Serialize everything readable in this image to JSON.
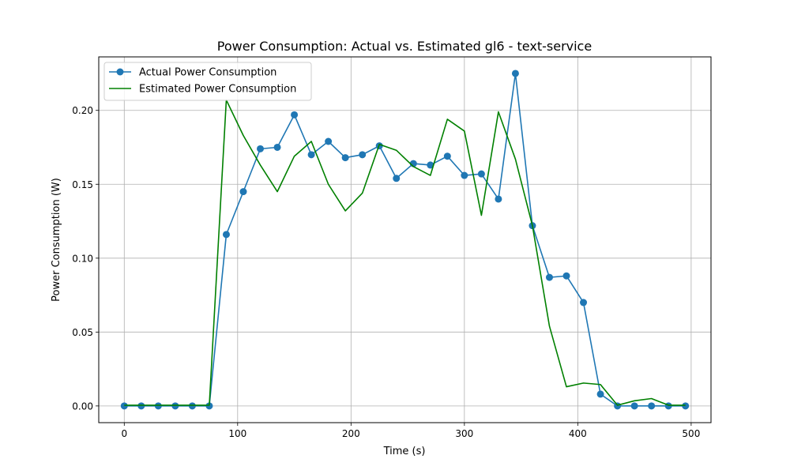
{
  "chart_data": {
    "type": "line",
    "title": "Power Consumption: Actual vs. Estimated gl6 - text-service",
    "xlabel": "Time (s)",
    "ylabel": "Power Consumption (W)",
    "xlim": [
      -22.5,
      517.5
    ],
    "ylim": [
      -0.0113,
      0.2362
    ],
    "xticks": [
      0,
      100,
      200,
      300,
      400,
      500
    ],
    "yticks": [
      0.0,
      0.05,
      0.1,
      0.15,
      0.2
    ],
    "xtick_labels": [
      "0",
      "100",
      "200",
      "300",
      "400",
      "500"
    ],
    "ytick_labels": [
      "0.00",
      "0.05",
      "0.10",
      "0.15",
      "0.20"
    ],
    "grid": true,
    "legend_position": "upper-left",
    "series": [
      {
        "name": "Actual Power Consumption",
        "color": "#1f77b4",
        "marker": "circle",
        "x": [
          0,
          15,
          30,
          45,
          60,
          75,
          90,
          105,
          120,
          135,
          150,
          165,
          180,
          195,
          210,
          225,
          240,
          255,
          270,
          285,
          300,
          315,
          330,
          345,
          360,
          375,
          390,
          405,
          420,
          435,
          450,
          465,
          480,
          495
        ],
        "values": [
          0.0,
          0.0,
          0.0,
          0.0,
          0.0,
          0.0,
          0.116,
          0.145,
          0.174,
          0.175,
          0.197,
          0.17,
          0.179,
          0.168,
          0.17,
          0.176,
          0.154,
          0.164,
          0.163,
          0.169,
          0.156,
          0.157,
          0.14,
          0.225,
          0.122,
          0.087,
          0.088,
          0.07,
          0.008,
          0.0,
          0.0,
          0.0,
          0.0,
          0.0
        ]
      },
      {
        "name": "Estimated Power Consumption",
        "color": "#008000",
        "marker": "none",
        "x": [
          0,
          15,
          30,
          45,
          60,
          75,
          90,
          105,
          120,
          135,
          150,
          165,
          180,
          195,
          210,
          225,
          240,
          255,
          270,
          285,
          300,
          315,
          330,
          345,
          360,
          375,
          390,
          405,
          420,
          435,
          450,
          465,
          480,
          495
        ],
        "values": [
          0.0005,
          0.0005,
          0.0005,
          0.0005,
          0.0005,
          0.0005,
          0.207,
          0.183,
          0.163,
          0.145,
          0.169,
          0.179,
          0.15,
          0.132,
          0.144,
          0.177,
          0.173,
          0.162,
          0.156,
          0.194,
          0.186,
          0.129,
          0.199,
          0.167,
          0.122,
          0.054,
          0.013,
          0.0155,
          0.0145,
          0.0005,
          0.0035,
          0.005,
          0.0005,
          0.0005
        ]
      }
    ]
  }
}
